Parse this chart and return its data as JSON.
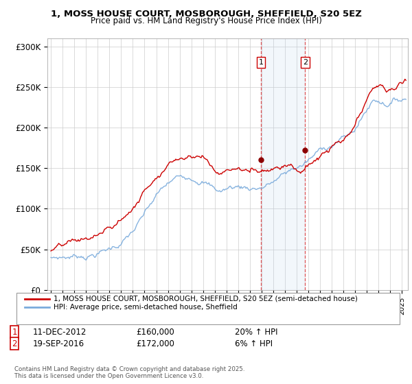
{
  "title": "1, MOSS HOUSE COURT, MOSBOROUGH, SHEFFIELD, S20 5EZ",
  "subtitle": "Price paid vs. HM Land Registry's House Price Index (HPI)",
  "legend_line1": "1, MOSS HOUSE COURT, MOSBOROUGH, SHEFFIELD, S20 5EZ (semi-detached house)",
  "legend_line2": "HPI: Average price, semi-detached house, Sheffield",
  "copyright": "Contains HM Land Registry data © Crown copyright and database right 2025.\nThis data is licensed under the Open Government Licence v3.0.",
  "annotation1": {
    "label": "1",
    "date": "11-DEC-2012",
    "price": "£160,000",
    "change": "20% ↑ HPI"
  },
  "annotation2": {
    "label": "2",
    "date": "19-SEP-2016",
    "price": "£172,000",
    "change": "6% ↑ HPI"
  },
  "ylim": [
    0,
    310000
  ],
  "yticks": [
    0,
    50000,
    100000,
    150000,
    200000,
    250000,
    300000
  ],
  "ytick_labels": [
    "£0",
    "£50K",
    "£100K",
    "£150K",
    "£200K",
    "£250K",
    "£300K"
  ],
  "xlim_start": 1994.7,
  "xlim_end": 2025.5,
  "property_color": "#cc0000",
  "hpi_color": "#7aabdc",
  "purchase1_date": 2012.95,
  "purchase2_date": 2016.72,
  "purchase1_price": 160000,
  "purchase2_price": 172000,
  "vline1_date": 2012.95,
  "vline2_date": 2016.72,
  "shade_start": 2012.95,
  "shade_end": 2016.72,
  "hpi_anchors_x": [
    1995.0,
    1995.5,
    1996.0,
    1996.5,
    1997.0,
    1997.5,
    1998.0,
    1998.5,
    1999.0,
    1999.5,
    2000.0,
    2000.5,
    2001.0,
    2001.5,
    2002.0,
    2002.5,
    2003.0,
    2003.5,
    2004.0,
    2004.5,
    2005.0,
    2005.5,
    2006.0,
    2006.5,
    2007.0,
    2007.5,
    2008.0,
    2008.5,
    2009.0,
    2009.5,
    2010.0,
    2010.5,
    2011.0,
    2011.5,
    2012.0,
    2012.5,
    2013.0,
    2013.5,
    2014.0,
    2014.5,
    2015.0,
    2015.5,
    2016.0,
    2016.5,
    2017.0,
    2017.5,
    2018.0,
    2018.5,
    2019.0,
    2019.5,
    2020.0,
    2020.5,
    2021.0,
    2021.5,
    2022.0,
    2022.5,
    2023.0,
    2023.5,
    2024.0,
    2024.5,
    2025.3
  ],
  "hpi_anchors_y": [
    40000,
    41000,
    42000,
    43000,
    44000,
    45500,
    47000,
    49000,
    52000,
    54000,
    57000,
    61000,
    66000,
    72000,
    79000,
    88000,
    97000,
    107000,
    117000,
    124000,
    130000,
    134000,
    137000,
    140000,
    142000,
    143000,
    143000,
    138000,
    132000,
    130000,
    133000,
    135000,
    136000,
    136000,
    136000,
    137000,
    139000,
    142000,
    146000,
    150000,
    154000,
    158000,
    162000,
    165000,
    170000,
    175000,
    181000,
    186000,
    191000,
    196000,
    199000,
    202000,
    210000,
    222000,
    234000,
    246000,
    248000,
    246000,
    248000,
    251000,
    254000
  ],
  "prop_anchors_x": [
    1995.0,
    1995.5,
    1996.0,
    1996.5,
    1997.0,
    1997.5,
    1998.0,
    1998.5,
    1999.0,
    1999.5,
    2000.0,
    2000.5,
    2001.0,
    2001.5,
    2002.0,
    2002.5,
    2003.0,
    2003.5,
    2004.0,
    2004.5,
    2005.0,
    2005.5,
    2006.0,
    2006.5,
    2007.0,
    2007.5,
    2008.0,
    2008.5,
    2009.0,
    2009.5,
    2010.0,
    2010.5,
    2011.0,
    2011.5,
    2012.0,
    2012.5,
    2012.95,
    2013.5,
    2014.0,
    2014.5,
    2015.0,
    2015.5,
    2016.0,
    2016.5,
    2016.72,
    2017.0,
    2017.5,
    2018.0,
    2018.5,
    2019.0,
    2019.5,
    2020.0,
    2020.5,
    2021.0,
    2021.5,
    2022.0,
    2022.5,
    2023.0,
    2023.3,
    2023.6,
    2024.0,
    2024.5,
    2025.0,
    2025.3
  ],
  "prop_anchors_y": [
    48000,
    49000,
    50000,
    51000,
    52000,
    53000,
    54000,
    56000,
    59000,
    62000,
    65000,
    70000,
    76000,
    83000,
    91000,
    102000,
    113000,
    124000,
    136000,
    145000,
    154000,
    160000,
    165000,
    168000,
    172000,
    173000,
    172000,
    165000,
    156000,
    153000,
    157000,
    160000,
    160000,
    158000,
    156000,
    158000,
    160000,
    163000,
    167000,
    170000,
    174000,
    178000,
    172000,
    170000,
    172000,
    176000,
    182000,
    187000,
    191000,
    196000,
    200000,
    200000,
    205000,
    215000,
    228000,
    240000,
    255000,
    260000,
    258000,
    250000,
    252000,
    256000,
    262000,
    265000
  ]
}
